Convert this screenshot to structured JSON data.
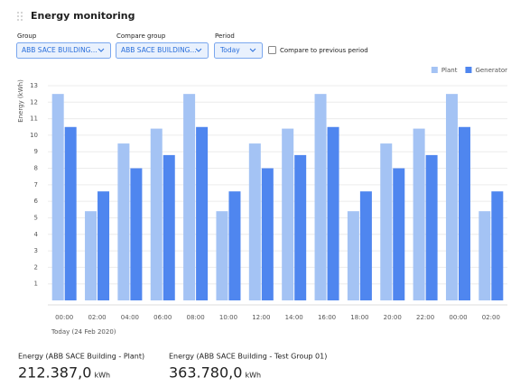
{
  "header": {
    "title": "Energy monitoring"
  },
  "filters": {
    "group": {
      "label": "Group",
      "value": "ABB SACE BUILDING..."
    },
    "compare_group": {
      "label": "Compare group",
      "value": "ABB SACE BUILDING..."
    },
    "period": {
      "label": "Period",
      "value": "Today"
    },
    "compare_previous": {
      "label": "Compare to previous period"
    }
  },
  "chart_data": {
    "type": "bar",
    "y_label": "Energy (kWh)",
    "x_note": "Today (24 Feb 2020)",
    "categories": [
      "00:00",
      "02:00",
      "04:00",
      "06:00",
      "08:00",
      "10:00",
      "12:00",
      "14:00",
      "16:00",
      "18:00",
      "20:00",
      "22:00",
      "00:00",
      "02:00"
    ],
    "series": [
      {
        "name": "Plant",
        "color": "#a4c3f4",
        "values": [
          12.5,
          5.4,
          9.5,
          10.4,
          12.5,
          5.4,
          9.5,
          10.4,
          12.5,
          5.4,
          9.5,
          10.4,
          12.5,
          5.4
        ]
      },
      {
        "name": "Generator",
        "color": "#4f86ef",
        "values": [
          10.5,
          6.6,
          8.0,
          8.8,
          10.5,
          6.6,
          8.0,
          8.8,
          10.5,
          6.6,
          8.0,
          8.8,
          10.5,
          6.6
        ]
      }
    ],
    "ylim": [
      0,
      13
    ],
    "yticks": [
      1,
      2,
      3,
      4,
      5,
      6,
      7,
      8,
      9,
      10,
      11,
      12,
      13
    ],
    "grid": true,
    "legend": "top-right"
  },
  "totals": [
    {
      "label": "Energy (ABB SACE Building - Plant)",
      "value": "212.387,0",
      "unit": "kWh"
    },
    {
      "label": "Energy (ABB SACE Building - Test Group 01)",
      "value": "363.780,0",
      "unit": "kWh"
    }
  ]
}
